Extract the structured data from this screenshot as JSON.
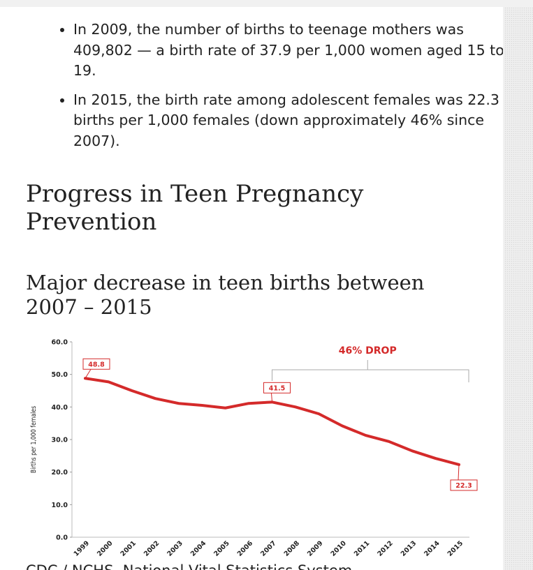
{
  "bullets": [
    "In 2009, the number of births to teenage mothers was 409,802 — a birth rate of 37.9 per 1,000 women aged 15 to 19.",
    "In 2015, the birth rate among adolescent females was 22.3 births per 1,000 females (down approximately 46% since 2007)."
  ],
  "heading": "Progress in Teen Pregnancy Prevention",
  "subheading": "Major decrease in teen births between 2007 – 2015",
  "chart_data": {
    "type": "line",
    "ylabel": "Births per 1,000 females",
    "annotation": "46% DROP",
    "categories": [
      "1999",
      "2000",
      "2001",
      "2002",
      "2003",
      "2004",
      "2005",
      "2006",
      "2007",
      "2008",
      "2009",
      "2010",
      "2011",
      "2012",
      "2013",
      "2014",
      "2015"
    ],
    "values": [
      48.8,
      47.7,
      45.0,
      42.6,
      41.1,
      40.5,
      39.7,
      41.1,
      41.5,
      40.0,
      37.9,
      34.2,
      31.3,
      29.4,
      26.5,
      24.2,
      22.3
    ],
    "value_labels": [
      "48.8",
      null,
      null,
      null,
      null,
      null,
      null,
      null,
      "41.5",
      null,
      null,
      null,
      null,
      null,
      null,
      null,
      "22.3"
    ],
    "color": "#d42a2a",
    "ylim": [
      0,
      60
    ],
    "yticks": [
      {
        "value": 0,
        "label": "0.0"
      },
      {
        "value": 10,
        "label": "10.0"
      },
      {
        "value": 20,
        "label": "20.0"
      },
      {
        "value": 30,
        "label": "30.0"
      },
      {
        "value": 40,
        "label": "40.0"
      },
      {
        "value": 50,
        "label": "50.0"
      },
      {
        "value": 60,
        "label": "60.0"
      }
    ]
  },
  "footer": "CDC / NCHS, National Vital Statistics System"
}
